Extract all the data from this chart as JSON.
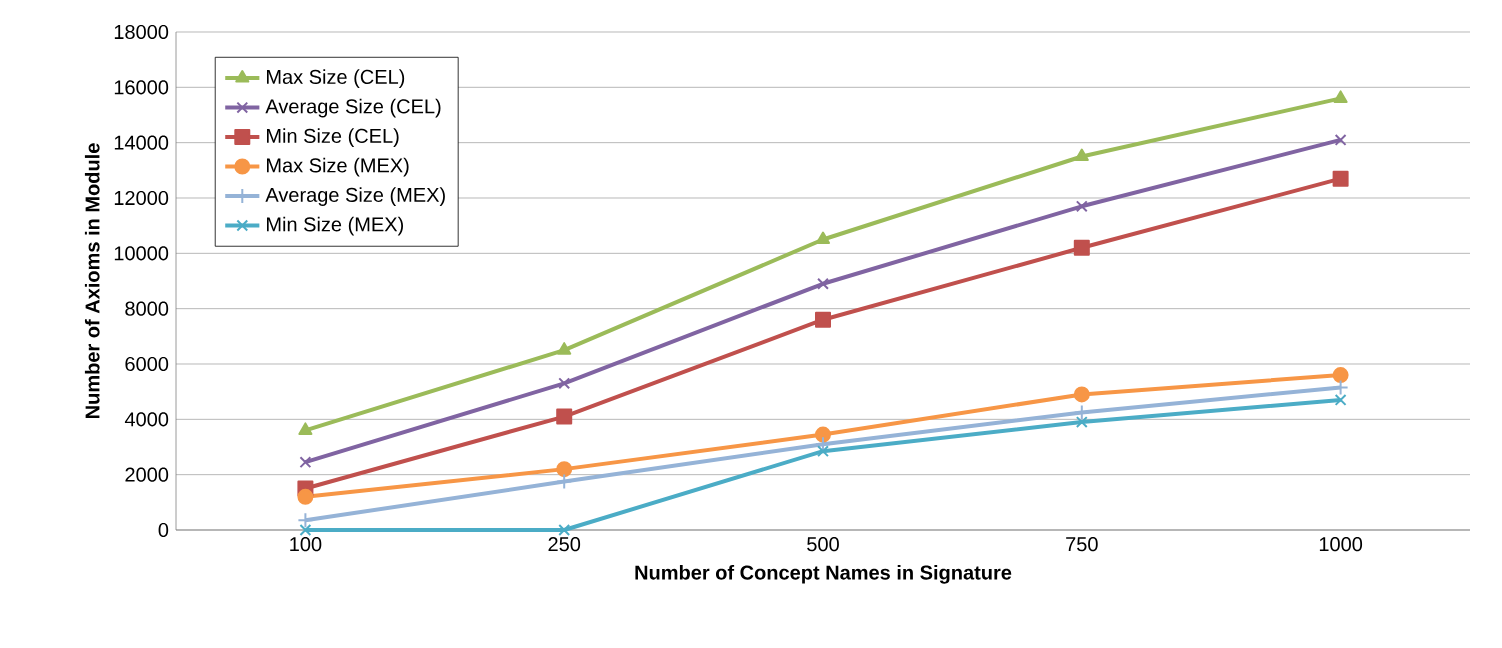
{
  "chart_data": {
    "type": "line",
    "xlabel": "Number of Concept Names in Signature",
    "ylabel": "Number of Axioms in Module",
    "categories": [
      "100",
      "250",
      "500",
      "750",
      "1000"
    ],
    "series": [
      {
        "name": "Max Size (CEL)",
        "color": "#9bbb59",
        "marker": "triangle",
        "values": [
          3600,
          6500,
          10500,
          13500,
          15600
        ]
      },
      {
        "name": "Average Size (CEL)",
        "color": "#8064a2",
        "marker": "cross",
        "values": [
          2450,
          5300,
          8900,
          11700,
          14100
        ]
      },
      {
        "name": "Min Size  (CEL)",
        "color": "#c0504d",
        "marker": "square",
        "values": [
          1500,
          4100,
          7600,
          10200,
          12700
        ]
      },
      {
        "name": "Max Size (MEX)",
        "color": "#f79646",
        "marker": "circle",
        "values": [
          1200,
          2200,
          3450,
          4900,
          5600
        ]
      },
      {
        "name": "Average Size (MEX)",
        "color": "#95b3d7",
        "marker": "plus",
        "values": [
          350,
          1750,
          3100,
          4250,
          5150
        ]
      },
      {
        "name": "Min Size  (MEX)",
        "color": "#4bacc6",
        "marker": "cross",
        "values": [
          0,
          0,
          2850,
          3900,
          4700
        ]
      }
    ],
    "ylim": [
      0,
      18000
    ],
    "yticks": [
      0,
      2000,
      4000,
      6000,
      8000,
      10000,
      12000,
      14000,
      16000,
      18000
    ],
    "grid": "y",
    "legend": "top left",
    "line_style": "solid"
  }
}
